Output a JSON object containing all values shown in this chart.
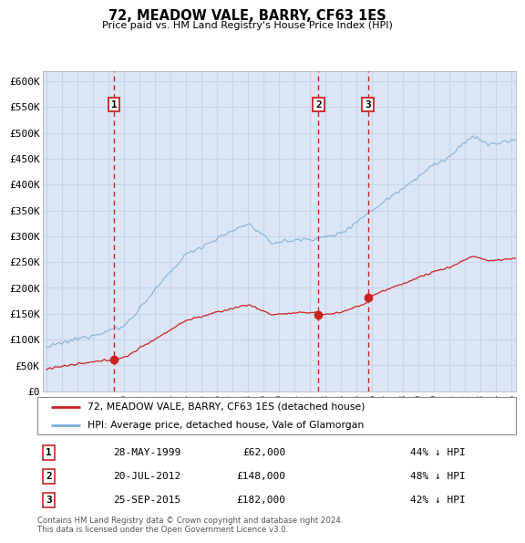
{
  "title": "72, MEADOW VALE, BARRY, CF63 1ES",
  "subtitle": "Price paid vs. HM Land Registry's House Price Index (HPI)",
  "ylabel_ticks": [
    "£0",
    "£50K",
    "£100K",
    "£150K",
    "£200K",
    "£250K",
    "£300K",
    "£350K",
    "£400K",
    "£450K",
    "£500K",
    "£550K",
    "£600K"
  ],
  "ytick_values": [
    0,
    50000,
    100000,
    150000,
    200000,
    250000,
    300000,
    350000,
    400000,
    450000,
    500000,
    550000,
    600000
  ],
  "xlim_start": 1994.75,
  "xlim_end": 2025.25,
  "ylim_max": 620000,
  "hpi_color": "#7ab0d8",
  "price_color": "#cc2222",
  "grid_color": "#c8d4e8",
  "bg_color": "#dce6f5",
  "sale_points": [
    {
      "date_decimal": 1999.37,
      "price": 62000,
      "label": "1"
    },
    {
      "date_decimal": 2012.55,
      "price": 148000,
      "label": "2"
    },
    {
      "date_decimal": 2015.73,
      "price": 182000,
      "label": "3"
    }
  ],
  "sale_dates_str": [
    "28-MAY-1999",
    "20-JUL-2012",
    "25-SEP-2015"
  ],
  "sale_prices_str": [
    "£62,000",
    "£148,000",
    "£182,000"
  ],
  "sale_pct_str": [
    "44% ↓ HPI",
    "48% ↓ HPI",
    "42% ↓ HPI"
  ],
  "legend_line1": "72, MEADOW VALE, BARRY, CF63 1ES (detached house)",
  "legend_line2": "HPI: Average price, detached house, Vale of Glamorgan",
  "footnote": "Contains HM Land Registry data © Crown copyright and database right 2024.\nThis data is licensed under the Open Government Licence v3.0.",
  "dashed_line_color": "#cc2222",
  "box_color": "#cc2222",
  "xtick_years": [
    1995,
    1996,
    1997,
    1998,
    1999,
    2000,
    2001,
    2002,
    2003,
    2004,
    2005,
    2006,
    2007,
    2008,
    2009,
    2010,
    2011,
    2012,
    2013,
    2014,
    2015,
    2016,
    2017,
    2018,
    2019,
    2020,
    2021,
    2022,
    2023,
    2024,
    2025
  ]
}
